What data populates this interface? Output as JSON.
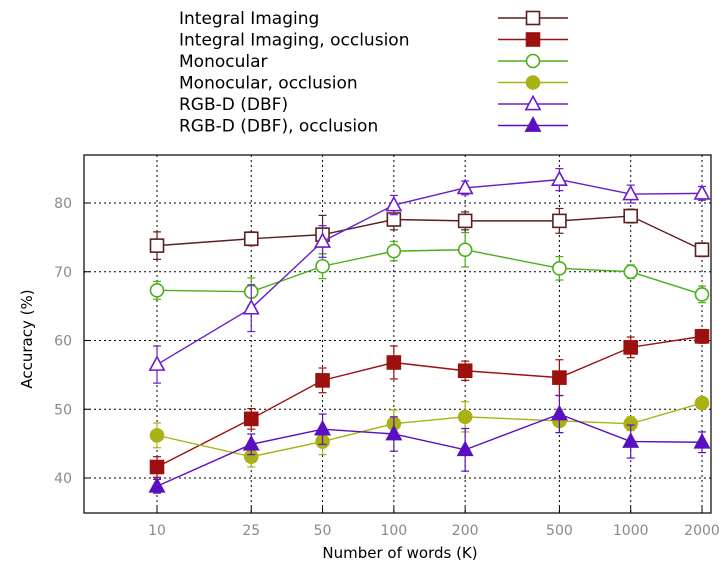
{
  "chart_data": {
    "type": "line",
    "title": "",
    "xlabel": "Number of words (K)",
    "ylabel": "Accuracy (%)",
    "x_scale": "log",
    "x": [
      10,
      25,
      50,
      100,
      200,
      500,
      1000,
      2000
    ],
    "x_tick_labels": [
      "10",
      "25",
      "50",
      "100",
      "200",
      "500",
      "1000",
      "2000"
    ],
    "ylim": [
      35,
      87
    ],
    "y_ticks": [
      40,
      50,
      60,
      70,
      80
    ],
    "y_tick_labels": [
      "40",
      "50",
      "60",
      "70",
      "80"
    ],
    "grid": true,
    "legend_position": "top, outside plot",
    "series": [
      {
        "name": "Integral Imaging",
        "color": "#5c1f1f",
        "marker": "square-open",
        "values": [
          73.8,
          74.8,
          75.4,
          77.6,
          77.4,
          77.4,
          78.1,
          73.2
        ],
        "errors": [
          2.0,
          1.0,
          2.8,
          1.5,
          1.3,
          1.8,
          1.0,
          1.0
        ]
      },
      {
        "name": "Integral Imaging, occlusion",
        "color": "#9c1010",
        "marker": "square-filled",
        "values": [
          41.6,
          48.6,
          54.2,
          56.8,
          55.6,
          54.6,
          59.0,
          60.6
        ],
        "errors": [
          1.5,
          1.5,
          1.8,
          2.4,
          1.4,
          2.6,
          1.5,
          1.0
        ]
      },
      {
        "name": "Monocular",
        "color": "#4caf1a",
        "marker": "circle-open",
        "values": [
          67.3,
          67.1,
          70.8,
          73.0,
          73.2,
          70.5,
          70.0,
          66.7
        ],
        "errors": [
          1.3,
          2.0,
          1.8,
          1.4,
          2.5,
          1.7,
          1.0,
          1.2
        ]
      },
      {
        "name": "Monocular, occlusion",
        "color": "#a8b214",
        "marker": "circle-filled",
        "values": [
          46.2,
          43.1,
          45.3,
          47.9,
          48.9,
          48.3,
          47.9,
          50.9
        ],
        "errors": [
          1.8,
          1.5,
          1.9,
          2.0,
          2.2,
          1.7,
          1.0,
          0.5
        ]
      },
      {
        "name": "RGB-D (DBF)",
        "color": "#6a1ec8",
        "marker": "triangle-open",
        "values": [
          56.5,
          64.7,
          74.4,
          79.7,
          82.2,
          83.4,
          81.3,
          81.4
        ],
        "errors": [
          2.7,
          3.4,
          2.3,
          1.4,
          1.0,
          1.6,
          1.3,
          1.0
        ]
      },
      {
        "name": "RGB-D (DBF), occlusion",
        "color": "#5a10c0",
        "marker": "triangle-filled",
        "values": [
          38.8,
          44.9,
          47.1,
          46.4,
          44.1,
          49.3,
          45.3,
          45.2
        ],
        "errors": [
          1.0,
          1.5,
          2.2,
          2.5,
          3.1,
          2.7,
          2.4,
          1.5
        ]
      }
    ]
  }
}
